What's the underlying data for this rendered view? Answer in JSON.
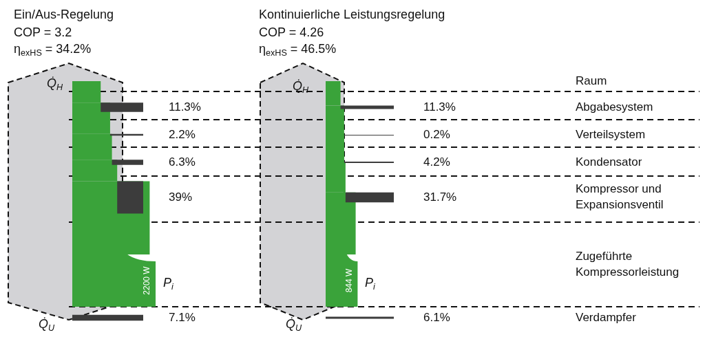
{
  "chart_data": {
    "type": "other",
    "categories": [
      "Raum",
      "Abgabesystem",
      "Verteilsystem",
      "Kondensator",
      "Kompressor und Expansionsventil",
      "Zugeführte Kompressorleistung",
      "Verdampfer"
    ],
    "series": [
      {
        "color": "#3aa33a",
        "values": [
          null,
          11.3,
          2.2,
          6.3,
          39,
          2200,
          7.1
        ],
        "value_labels": [
          null,
          "11.3%",
          "2.2%",
          "6.3%",
          "39%",
          "2200 W",
          "7.1%"
        ]
      },
      {
        "color": "#3aa33a",
        "values": [
          null,
          11.3,
          0.2,
          4.2,
          31.7,
          844,
          6.1
        ],
        "value_labels": [
          null,
          "11.3%",
          "0.2%",
          "4.2%",
          "31.7%",
          "844 W",
          "6.1%"
        ]
      }
    ],
    "annotations": [
      "Ein/Aus-Regelung",
      "COP = 3.2",
      "η$_{exHS}$ = 34.2%",
      "Q̇$_{H}$",
      "Q̇$_{U}$",
      "P$_{i}$",
      "Kontinuierliche Leistungsregelung",
      "COP = 4.26",
      "η$_{exHS}$ = 46.5%",
      "Q̇$_{H}$",
      "Q̇$_{U}$",
      "P$_{i}$"
    ]
  }
}
